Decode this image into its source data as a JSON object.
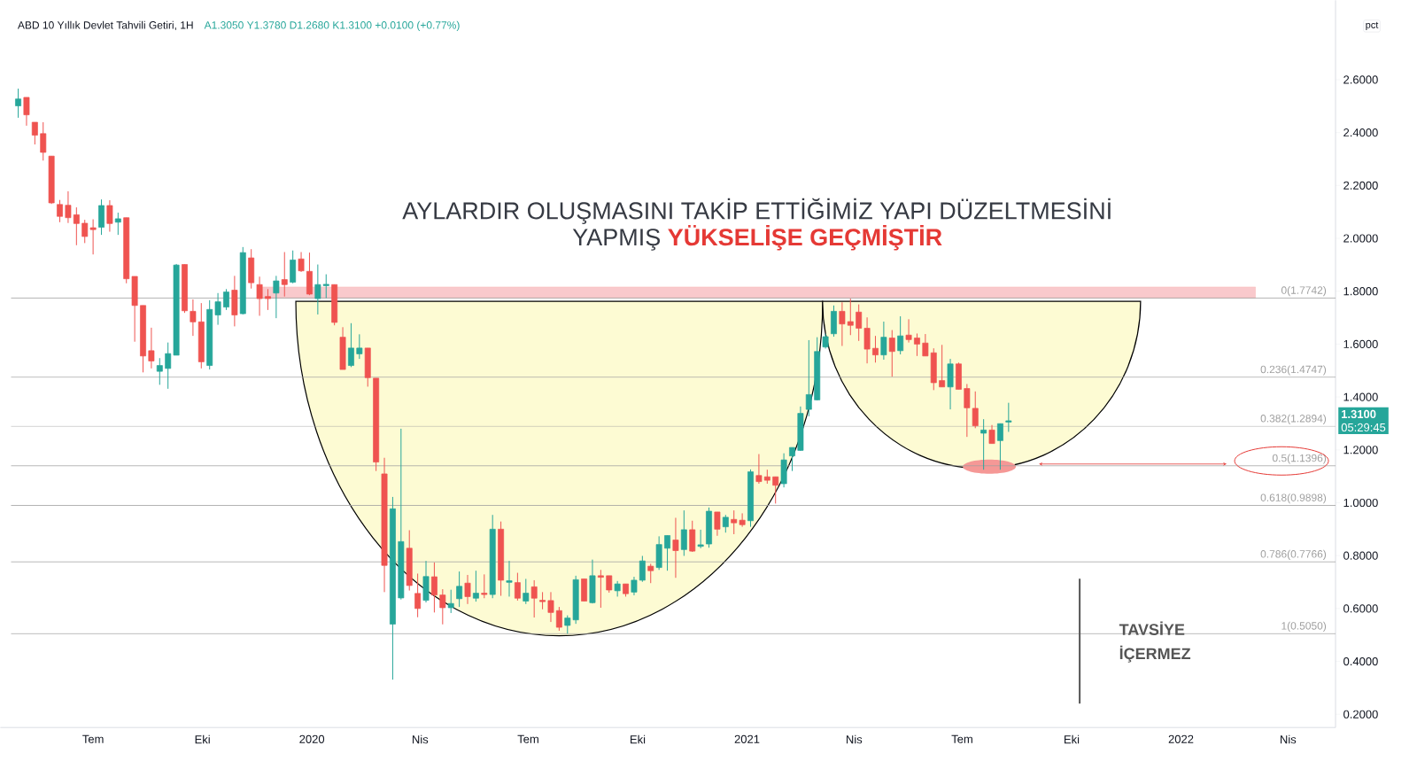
{
  "chart_data": {
    "type": "candlestick",
    "title": "ABD 10 Yıllık Devlet Tahvili Getiri, 1H",
    "subtitle": "A1.3050 Y1.3780 D1.2680 K1.3100 +0.0100 (+0.77%)",
    "x": [
      "2019-04-29",
      "2019-05-06",
      "2019-05-13",
      "2019-05-20",
      "2019-05-27",
      "2019-06-03",
      "2019-06-10",
      "2019-06-17",
      "2019-06-24",
      "2019-07-01",
      "2019-07-08",
      "2019-07-15",
      "2019-07-22",
      "2019-07-29",
      "2019-08-05",
      "2019-08-12",
      "2019-08-19",
      "2019-08-26",
      "2019-09-02",
      "2019-09-09",
      "2019-09-16",
      "2019-09-23",
      "2019-09-30",
      "2019-10-07",
      "2019-10-14",
      "2019-10-21",
      "2019-10-28",
      "2019-11-04",
      "2019-11-11",
      "2019-11-18",
      "2019-11-25",
      "2019-12-02",
      "2019-12-09",
      "2019-12-16",
      "2019-12-23",
      "2019-12-30",
      "2020-01-06",
      "2020-01-13",
      "2020-01-20",
      "2020-01-27",
      "2020-02-03",
      "2020-02-10",
      "2020-02-17",
      "2020-02-24",
      "2020-03-02",
      "2020-03-09",
      "2020-03-16",
      "2020-03-23",
      "2020-03-30",
      "2020-04-06",
      "2020-04-13",
      "2020-04-20",
      "2020-04-27",
      "2020-05-04",
      "2020-05-11",
      "2020-05-18",
      "2020-05-25",
      "2020-06-01",
      "2020-06-08",
      "2020-06-15",
      "2020-06-22",
      "2020-06-29",
      "2020-07-06",
      "2020-07-13",
      "2020-07-20",
      "2020-07-27",
      "2020-08-03",
      "2020-08-10",
      "2020-08-17",
      "2020-08-24",
      "2020-08-31",
      "2020-09-07",
      "2020-09-14",
      "2020-09-21",
      "2020-09-28",
      "2020-10-05",
      "2020-10-12",
      "2020-10-19",
      "2020-10-26",
      "2020-11-02",
      "2020-11-09",
      "2020-11-16",
      "2020-11-23",
      "2020-11-30",
      "2020-12-07",
      "2020-12-14",
      "2020-12-21",
      "2020-12-28",
      "2021-01-04",
      "2021-01-11",
      "2021-01-18",
      "2021-01-25",
      "2021-02-01",
      "2021-02-08",
      "2021-02-15",
      "2021-02-22",
      "2021-03-01",
      "2021-03-08",
      "2021-03-15",
      "2021-03-22",
      "2021-03-29",
      "2021-04-05",
      "2021-04-12",
      "2021-04-19",
      "2021-04-26",
      "2021-05-03",
      "2021-05-10",
      "2021-05-17",
      "2021-05-24",
      "2021-05-31",
      "2021-06-07",
      "2021-06-14",
      "2021-06-21",
      "2021-06-28",
      "2021-07-05",
      "2021-07-12",
      "2021-07-19",
      "2021-07-26",
      "2021-08-02",
      "2021-08-09"
    ],
    "ohlc": [
      [
        2.501,
        2.566,
        2.456,
        2.527
      ],
      [
        2.533,
        2.533,
        2.426,
        2.467
      ],
      [
        2.439,
        2.439,
        2.355,
        2.39
      ],
      [
        2.396,
        2.439,
        2.294,
        2.325
      ],
      [
        2.311,
        2.311,
        2.13,
        2.134
      ],
      [
        2.128,
        2.145,
        2.061,
        2.083
      ],
      [
        2.125,
        2.178,
        2.058,
        2.078
      ],
      [
        2.089,
        2.117,
        1.974,
        2.056
      ],
      [
        2.057,
        2.07,
        1.982,
        2.007
      ],
      [
        2.04,
        2.072,
        1.939,
        2.033
      ],
      [
        2.042,
        2.147,
        2.013,
        2.124
      ],
      [
        2.124,
        2.144,
        2.025,
        2.056
      ],
      [
        2.061,
        2.097,
        2.013,
        2.074
      ],
      [
        2.078,
        2.078,
        1.83,
        1.847
      ],
      [
        1.856,
        1.856,
        1.609,
        1.746
      ],
      [
        1.746,
        1.746,
        1.493,
        1.555
      ],
      [
        1.575,
        1.662,
        1.508,
        1.536
      ],
      [
        1.497,
        1.547,
        1.446,
        1.519
      ],
      [
        1.508,
        1.606,
        1.431,
        1.564
      ],
      [
        1.558,
        1.903,
        1.558,
        1.899
      ],
      [
        1.901,
        1.901,
        1.718,
        1.726
      ],
      [
        1.724,
        1.769,
        1.631,
        1.684
      ],
      [
        1.684,
        1.755,
        1.508,
        1.533
      ],
      [
        1.519,
        1.766,
        1.504,
        1.731
      ],
      [
        1.71,
        1.793,
        1.673,
        1.76
      ],
      [
        1.74,
        1.808,
        1.729,
        1.797
      ],
      [
        1.804,
        1.858,
        1.667,
        1.71
      ],
      [
        1.715,
        1.967,
        1.712,
        1.946
      ],
      [
        1.926,
        1.959,
        1.81,
        1.832
      ],
      [
        1.825,
        1.855,
        1.707,
        1.772
      ],
      [
        1.78,
        1.808,
        1.729,
        1.772
      ],
      [
        1.793,
        1.858,
        1.698,
        1.839
      ],
      [
        1.844,
        1.948,
        1.78,
        1.825
      ],
      [
        1.834,
        1.954,
        1.83,
        1.918
      ],
      [
        1.922,
        1.948,
        1.873,
        1.877
      ],
      [
        1.875,
        1.946,
        1.785,
        1.789
      ],
      [
        1.772,
        1.901,
        1.712,
        1.825
      ],
      [
        1.821,
        1.864,
        1.774,
        1.826
      ],
      [
        1.825,
        1.825,
        1.671,
        1.682
      ],
      [
        1.626,
        1.664,
        1.504,
        1.504
      ],
      [
        1.519,
        1.679,
        1.513,
        1.585
      ],
      [
        1.563,
        1.637,
        1.544,
        1.585
      ],
      [
        1.585,
        1.585,
        1.439,
        1.473
      ],
      [
        1.471,
        1.471,
        1.12,
        1.154
      ],
      [
        1.109,
        1.17,
        0.662,
        0.763
      ],
      [
        0.541,
        1.022,
        0.331,
        0.977
      ],
      [
        0.64,
        1.28,
        0.634,
        0.853
      ],
      [
        0.828,
        0.896,
        0.668,
        0.687
      ],
      [
        0.657,
        0.732,
        0.567,
        0.6
      ],
      [
        0.631,
        0.78,
        0.623,
        0.721
      ],
      [
        0.72,
        0.774,
        0.585,
        0.651
      ],
      [
        0.651,
        0.673,
        0.54,
        0.603
      ],
      [
        0.603,
        0.671,
        0.583,
        0.619
      ],
      [
        0.637,
        0.74,
        0.606,
        0.684
      ],
      [
        0.696,
        0.727,
        0.617,
        0.645
      ],
      [
        0.639,
        0.743,
        0.626,
        0.658
      ],
      [
        0.658,
        0.729,
        0.639,
        0.653
      ],
      [
        0.653,
        0.954,
        0.639,
        0.9
      ],
      [
        0.9,
        0.929,
        0.648,
        0.707
      ],
      [
        0.699,
        0.78,
        0.645,
        0.705
      ],
      [
        0.698,
        0.735,
        0.63,
        0.639
      ],
      [
        0.628,
        0.712,
        0.617,
        0.658
      ],
      [
        0.682,
        0.707,
        0.566,
        0.639
      ],
      [
        0.631,
        0.662,
        0.597,
        0.626
      ],
      [
        0.63,
        0.662,
        0.549,
        0.585
      ],
      [
        0.592,
        0.606,
        0.516,
        0.529
      ],
      [
        0.536,
        0.574,
        0.505,
        0.564
      ],
      [
        0.557,
        0.724,
        0.542,
        0.709
      ],
      [
        0.712,
        0.712,
        0.628,
        0.628
      ],
      [
        0.622,
        0.785,
        0.619,
        0.724
      ],
      [
        0.724,
        0.746,
        0.603,
        0.718
      ],
      [
        0.724,
        0.724,
        0.66,
        0.67
      ],
      [
        0.667,
        0.704,
        0.645,
        0.693
      ],
      [
        0.693,
        0.693,
        0.645,
        0.656
      ],
      [
        0.662,
        0.72,
        0.65,
        0.707
      ],
      [
        0.707,
        0.799,
        0.701,
        0.78
      ],
      [
        0.76,
        0.769,
        0.696,
        0.743
      ],
      [
        0.755,
        0.873,
        0.746,
        0.842
      ],
      [
        0.828,
        0.876,
        0.743,
        0.876
      ],
      [
        0.859,
        0.943,
        0.716,
        0.819
      ],
      [
        0.823,
        0.971,
        0.799,
        0.898
      ],
      [
        0.898,
        0.932,
        0.814,
        0.817
      ],
      [
        0.835,
        0.898,
        0.828,
        0.841
      ],
      [
        0.844,
        0.982,
        0.83,
        0.968
      ],
      [
        0.965,
        0.965,
        0.875,
        0.9
      ],
      [
        0.909,
        0.954,
        0.887,
        0.945
      ],
      [
        0.937,
        0.971,
        0.881,
        0.924
      ],
      [
        0.934,
        0.96,
        0.909,
        0.917
      ],
      [
        0.932,
        1.126,
        0.909,
        1.117
      ],
      [
        1.103,
        1.184,
        1.072,
        1.08
      ],
      [
        1.098,
        1.125,
        1.072,
        1.085
      ],
      [
        1.098,
        1.098,
        0.997,
        1.066
      ],
      [
        1.072,
        1.187,
        1.058,
        1.162
      ],
      [
        1.177,
        1.209,
        1.12,
        1.209
      ],
      [
        1.198,
        1.364,
        1.196,
        1.338
      ],
      [
        1.353,
        1.615,
        1.327,
        1.409
      ],
      [
        1.389,
        1.626,
        1.387,
        1.572
      ],
      [
        1.589,
        1.639,
        1.583,
        1.628
      ],
      [
        1.639,
        1.746,
        1.628,
        1.724
      ],
      [
        1.724,
        1.758,
        1.593,
        1.676
      ],
      [
        1.685,
        1.772,
        1.634,
        1.671
      ],
      [
        1.721,
        1.75,
        1.612,
        1.66
      ],
      [
        1.66,
        1.701,
        1.527,
        1.581
      ],
      [
        1.584,
        1.631,
        1.53,
        1.559
      ],
      [
        1.559,
        1.685,
        1.541,
        1.626
      ],
      [
        1.623,
        1.653,
        1.477,
        1.572
      ],
      [
        1.575,
        1.705,
        1.561,
        1.631
      ],
      [
        1.634,
        1.694,
        1.606,
        1.617
      ],
      [
        1.623,
        1.64,
        1.555,
        1.6
      ],
      [
        1.604,
        1.638,
        1.555,
        1.555
      ],
      [
        1.567,
        1.584,
        1.426,
        1.454
      ],
      [
        1.462,
        1.597,
        1.438,
        1.438
      ],
      [
        1.438,
        1.544,
        1.353,
        1.525
      ],
      [
        1.525,
        1.53,
        1.429,
        1.429
      ],
      [
        1.432,
        1.449,
        1.249,
        1.359
      ],
      [
        1.357,
        1.421,
        1.282,
        1.291
      ],
      [
        1.263,
        1.316,
        1.125,
        1.275
      ],
      [
        1.275,
        1.294,
        1.224,
        1.224
      ],
      [
        1.235,
        1.299,
        1.125,
        1.299
      ],
      [
        1.305,
        1.378,
        1.268,
        1.31
      ]
    ],
    "xlim": [
      "2019-04-14",
      "2022-05-11"
    ],
    "xticks": [
      {
        "value": "2019-07-01",
        "label": "Tem"
      },
      {
        "value": "2019-10-01",
        "label": "Eki"
      },
      {
        "value": "2020-01-01",
        "label": "2020"
      },
      {
        "value": "2020-04-01",
        "label": "Nis"
      },
      {
        "value": "2020-07-01",
        "label": "Tem"
      },
      {
        "value": "2020-10-01",
        "label": "Eki"
      },
      {
        "value": "2021-01-01",
        "label": "2021"
      },
      {
        "value": "2021-04-01",
        "label": "Nis"
      },
      {
        "value": "2021-07-01",
        "label": "Tem"
      },
      {
        "value": "2021-10-01",
        "label": "Eki"
      },
      {
        "value": "2022-01-01",
        "label": "2022"
      },
      {
        "value": "2022-04-01",
        "label": "Nis"
      }
    ],
    "ylim": [
      0.15,
      2.9
    ],
    "yticks": [
      {
        "value": 0.2,
        "label": "0.2000"
      },
      {
        "value": 0.4,
        "label": "0.4000"
      },
      {
        "value": 0.6,
        "label": "0.6000"
      },
      {
        "value": 0.8,
        "label": "0.8000"
      },
      {
        "value": 1.0,
        "label": "1.0000"
      },
      {
        "value": 1.2,
        "label": "1.2000"
      },
      {
        "value": 1.4,
        "label": "1.4000"
      },
      {
        "value": 1.6,
        "label": "1.6000"
      },
      {
        "value": 1.8,
        "label": "1.8000"
      },
      {
        "value": 2.0,
        "label": "2.0000"
      },
      {
        "value": 2.2,
        "label": "2.2000"
      },
      {
        "value": 2.4,
        "label": "2.4000"
      },
      {
        "value": 2.6,
        "label": "2.6000"
      }
    ],
    "ref_lines": [
      {
        "axis": "y",
        "value": 1.7742,
        "label": "0(1.7742)",
        "color": "#9e9e9e"
      },
      {
        "axis": "y",
        "value": 1.4747,
        "label": "0.236(1.4747)",
        "color": "#9e9e9e"
      },
      {
        "axis": "y",
        "value": 1.2894,
        "label": "0.382(1.2894)",
        "color": "#9e9e9e"
      },
      {
        "axis": "y",
        "value": 1.1396,
        "label": "0.5(1.1396)",
        "color": "#9e9e9e"
      },
      {
        "axis": "y",
        "value": 0.9898,
        "label": "0.618(0.9898)",
        "color": "#9e9e9e"
      },
      {
        "axis": "y",
        "value": 0.7766,
        "label": "0.786(0.7766)",
        "color": "#9e9e9e"
      },
      {
        "axis": "y",
        "value": 0.505,
        "label": "1(0.5050)",
        "color": "#9e9e9e"
      }
    ],
    "bands": [
      {
        "axis": "y",
        "from": 1.7742,
        "to": 1.816,
        "color": "#f9c9cc"
      }
    ],
    "annotations": [
      "AYLARDIR OLUŞMASINI TAKİP ETTİĞİMİZ YAPI  DÜZELTMESİNİ",
      "YAPMIŞ",
      "YÜKSELİŞE GEÇMİŞTİR",
      "1.3100",
      "05:29:45",
      "TAVSİYE",
      "İÇERMEZ",
      "pct"
    ]
  }
}
